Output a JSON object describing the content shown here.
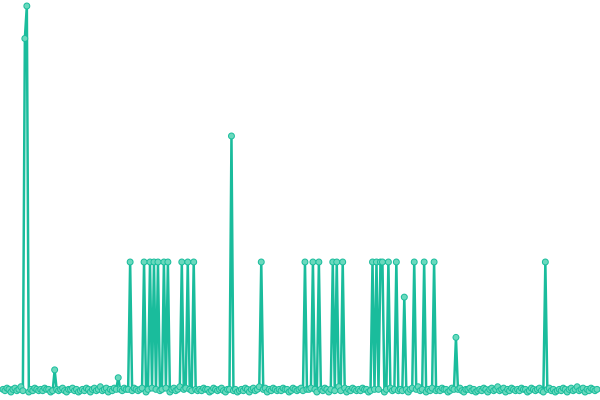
{
  "chart_data": {
    "type": "line",
    "title": "",
    "xlabel": "",
    "ylabel": "",
    "axes_visible": false,
    "grid": false,
    "legend": "none",
    "markers": true,
    "colors": {
      "line": "#1abc9c",
      "marker_fill": "#6ad9bd",
      "marker_stroke": "#1abc9c"
    },
    "ylim": [
      0,
      300
    ],
    "series": [
      {
        "values": [
          2,
          1,
          3,
          2,
          0,
          2,
          3,
          1,
          2,
          4,
          1,
          272,
          297,
          0,
          2,
          1,
          3,
          2,
          1,
          2,
          1,
          3,
          2,
          2,
          0,
          1,
          17,
          2,
          1,
          2,
          3,
          1,
          0,
          2,
          2,
          3,
          1,
          2,
          0,
          1,
          2,
          1,
          3,
          2,
          0,
          2,
          3,
          1,
          2,
          4,
          1,
          2,
          3,
          0,
          2,
          1,
          3,
          2,
          11,
          2,
          1,
          3,
          2,
          2,
          100,
          1,
          3,
          2,
          1,
          2,
          3,
          100,
          0,
          2,
          100,
          3,
          100,
          2,
          100,
          1,
          2,
          100,
          3,
          100,
          0,
          2,
          3,
          1,
          2,
          4,
          100,
          2,
          3,
          100,
          2,
          1,
          100,
          2,
          1,
          2,
          1,
          3,
          2,
          2,
          0,
          1,
          3,
          2,
          1,
          2,
          3,
          1,
          0,
          2,
          2,
          197,
          1,
          2,
          0,
          1,
          2,
          1,
          3,
          2,
          0,
          2,
          3,
          1,
          2,
          4,
          100,
          2,
          3,
          0,
          2,
          1,
          3,
          2,
          1,
          2,
          1,
          3,
          2,
          2,
          0,
          1,
          3,
          2,
          1,
          2,
          3,
          1,
          100,
          2,
          2,
          3,
          100,
          2,
          0,
          100,
          2,
          1,
          3,
          2,
          0,
          2,
          100,
          1,
          100,
          4,
          1,
          100,
          3,
          0,
          2,
          1,
          3,
          2,
          1,
          2,
          1,
          3,
          2,
          2,
          0,
          1,
          100,
          2,
          100,
          2,
          100,
          100,
          0,
          2,
          100,
          3,
          1,
          2,
          100,
          1,
          2,
          1,
          73,
          2,
          0,
          2,
          3,
          100,
          2,
          4,
          1,
          2,
          100,
          0,
          2,
          1,
          3,
          100,
          1,
          2,
          1,
          3,
          2,
          2,
          0,
          1,
          3,
          2,
          42,
          2,
          3,
          1,
          0,
          2,
          2,
          3,
          1,
          2,
          0,
          1,
          2,
          1,
          3,
          2,
          0,
          2,
          3,
          1,
          2,
          4,
          1,
          2,
          3,
          0,
          2,
          1,
          3,
          2,
          1,
          2,
          1,
          3,
          2,
          2,
          0,
          1,
          3,
          2,
          1,
          2,
          3,
          1,
          0,
          100,
          2,
          3,
          1,
          2,
          0,
          1,
          2,
          1,
          3,
          2,
          0,
          2,
          3,
          1,
          2,
          4,
          1,
          2,
          3,
          0,
          2,
          1,
          3,
          2,
          1,
          2
        ]
      }
    ]
  }
}
